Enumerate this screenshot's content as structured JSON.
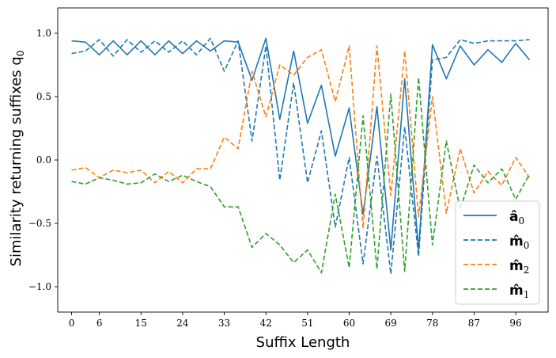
{
  "chart_data": {
    "type": "line",
    "xlabel": "Suffix Length",
    "ylabel": "Similarity returning suffixes q",
    "ylabel_sub": "0",
    "xlim": [
      -3,
      103
    ],
    "ylim": [
      -1.2,
      1.2
    ],
    "xticks": [
      0,
      6,
      15,
      24,
      33,
      42,
      51,
      60,
      69,
      78,
      87,
      96
    ],
    "yticks": [
      -1.0,
      -0.5,
      0.0,
      0.5,
      1.0
    ],
    "ytick_labels": [
      "−1.0",
      "−0.5",
      "0.0",
      "0.5",
      "1.0"
    ],
    "grid": false,
    "legend_position": "lower-right",
    "series": [
      {
        "name": "â",
        "name_sub": "0",
        "color": "#1f77b4",
        "dashed": false,
        "x": [
          0,
          3,
          6,
          9,
          12,
          15,
          18,
          21,
          24,
          27,
          30,
          33,
          36,
          39,
          42,
          45,
          48,
          51,
          54,
          57,
          60,
          63,
          66,
          69,
          72,
          75,
          78,
          81,
          84,
          87,
          90,
          93,
          96,
          99
        ],
        "values": [
          0.94,
          0.93,
          0.83,
          0.94,
          0.83,
          0.94,
          0.83,
          0.94,
          0.84,
          0.94,
          0.86,
          0.94,
          0.93,
          0.63,
          0.96,
          0.32,
          0.86,
          0.29,
          0.59,
          0.03,
          0.41,
          -0.43,
          0.42,
          -0.71,
          0.64,
          -0.71,
          0.91,
          0.64,
          0.9,
          0.75,
          0.87,
          0.77,
          0.92,
          0.79
        ]
      },
      {
        "name": "m̂",
        "name_sub": "0",
        "color": "#1f77b4",
        "dashed": true,
        "x": [
          0,
          3,
          6,
          9,
          12,
          15,
          18,
          21,
          24,
          27,
          30,
          33,
          36,
          39,
          42,
          45,
          48,
          51,
          54,
          57,
          60,
          63,
          66,
          69,
          72,
          75,
          78,
          81,
          84,
          87,
          90,
          93,
          96,
          99
        ],
        "values": [
          0.84,
          0.86,
          0.95,
          0.82,
          0.95,
          0.85,
          0.94,
          0.85,
          0.94,
          0.83,
          0.96,
          0.7,
          0.94,
          0.15,
          0.9,
          -0.16,
          0.61,
          -0.18,
          0.23,
          -0.53,
          0.02,
          -0.82,
          0.03,
          -0.9,
          0.26,
          -0.76,
          0.79,
          0.81,
          0.95,
          0.92,
          0.94,
          0.94,
          0.94,
          0.95
        ]
      },
      {
        "name": "m̂",
        "name_sub": "2",
        "color": "#ff7f0e",
        "dashed": true,
        "x": [
          0,
          3,
          6,
          9,
          12,
          15,
          18,
          21,
          24,
          27,
          30,
          33,
          36,
          39,
          42,
          45,
          48,
          51,
          54,
          57,
          60,
          63,
          66,
          69,
          72,
          75,
          78,
          81,
          84,
          87,
          90,
          93,
          96,
          99
        ],
        "values": [
          -0.08,
          -0.06,
          -0.14,
          -0.08,
          -0.1,
          -0.08,
          -0.18,
          -0.09,
          -0.18,
          -0.07,
          -0.07,
          0.18,
          0.09,
          0.7,
          0.34,
          0.75,
          0.67,
          0.81,
          0.87,
          0.46,
          0.9,
          -0.54,
          0.9,
          -0.28,
          0.86,
          -0.45,
          0.5,
          -0.42,
          0.09,
          -0.26,
          -0.09,
          -0.2,
          0.02,
          -0.14
        ]
      },
      {
        "name": "m̂",
        "name_sub": "1",
        "color": "#2ca02c",
        "dashed": true,
        "x": [
          0,
          3,
          6,
          9,
          12,
          15,
          18,
          21,
          24,
          27,
          30,
          33,
          36,
          39,
          42,
          45,
          48,
          51,
          54,
          57,
          60,
          63,
          66,
          69,
          72,
          75,
          78,
          81,
          84,
          87,
          90,
          93,
          96,
          99
        ],
        "values": [
          -0.17,
          -0.19,
          -0.14,
          -0.16,
          -0.19,
          -0.18,
          -0.11,
          -0.17,
          -0.12,
          -0.17,
          -0.21,
          -0.37,
          -0.37,
          -0.69,
          -0.58,
          -0.67,
          -0.81,
          -0.71,
          -0.89,
          -0.27,
          -0.85,
          0.35,
          -0.86,
          0.52,
          -0.88,
          0.65,
          -0.67,
          0.15,
          -0.39,
          -0.04,
          -0.18,
          -0.07,
          -0.31,
          -0.11
        ]
      }
    ]
  }
}
